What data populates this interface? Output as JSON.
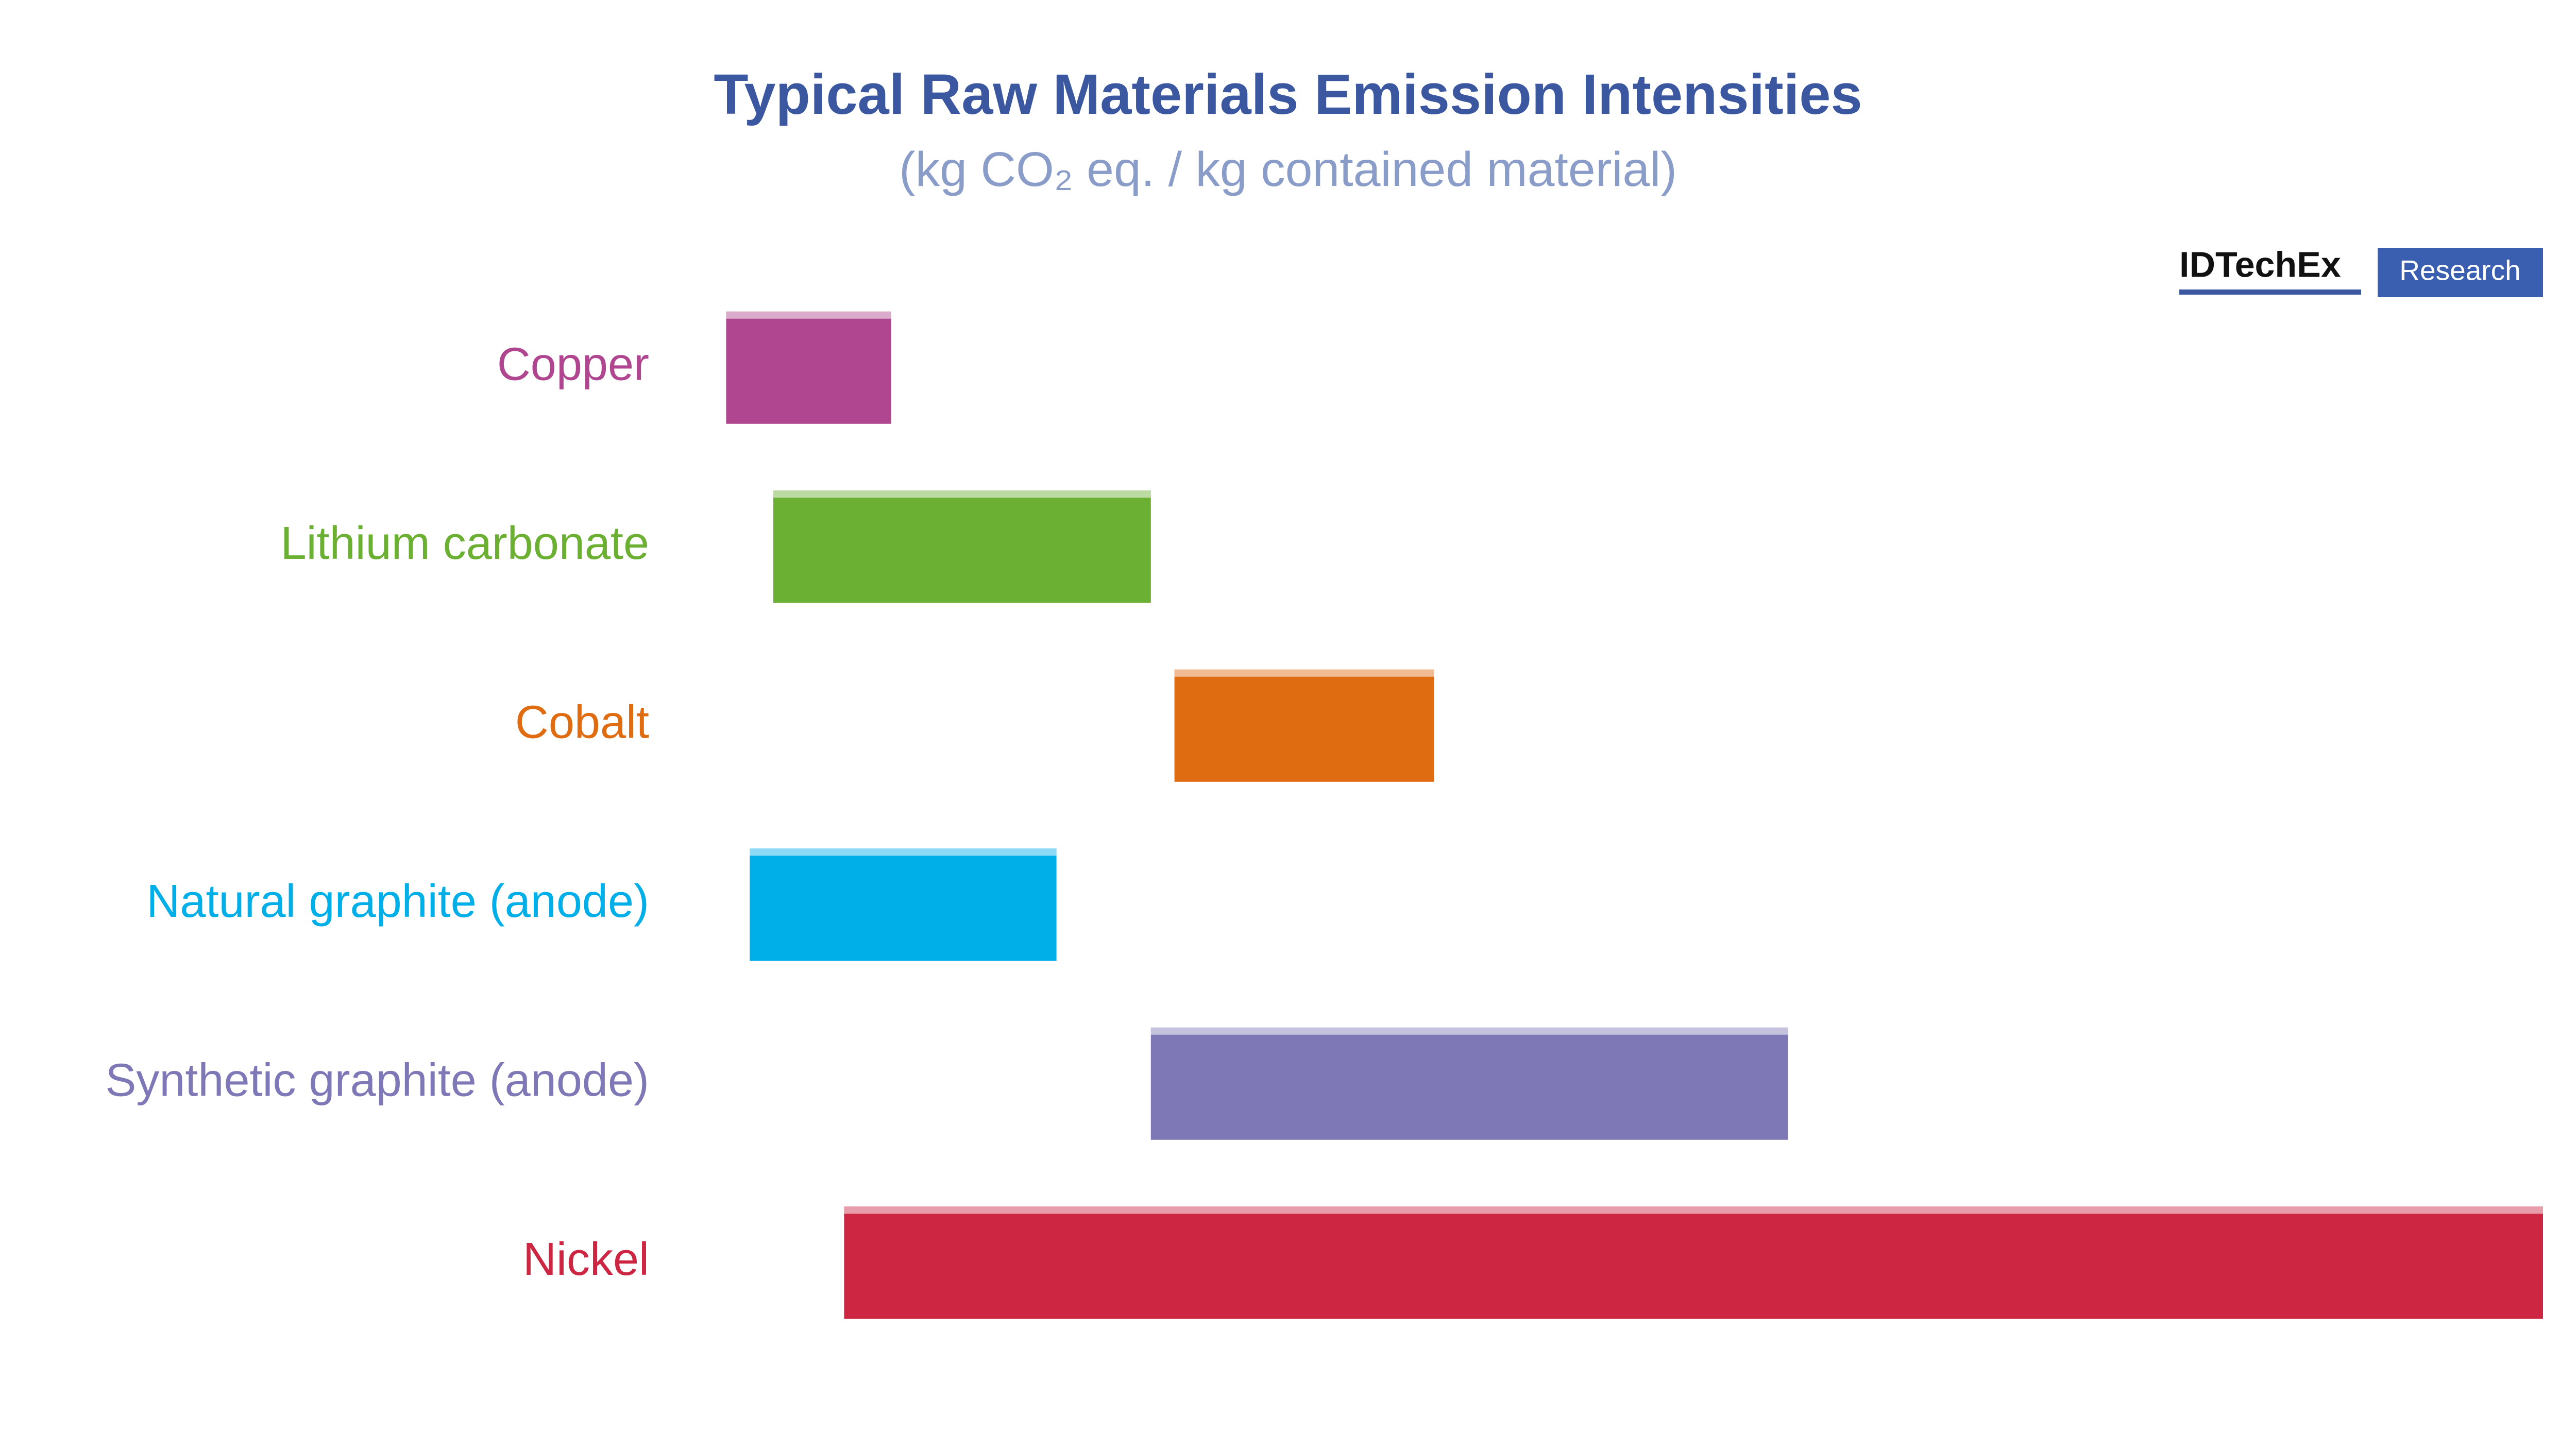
{
  "chart_data": {
    "type": "bar",
    "orientation": "horizontal",
    "title": "Typical Raw Materials Emission Intensities",
    "subtitle": "(kg CO₂ eq. / kg contained material)",
    "categories": [
      "Copper",
      "Lithium carbonate",
      "Cobalt",
      "Natural graphite (anode)",
      "Synthetic graphite (anode)",
      "Nickel"
    ],
    "values": [
      [
        1.5,
        5
      ],
      [
        2.5,
        10.5
      ],
      [
        11,
        16.5
      ],
      [
        2,
        8.5
      ],
      [
        10.5,
        24
      ],
      [
        4,
        40
      ]
    ],
    "colors": [
      "#b0468f",
      "#6cb033",
      "#e06c12",
      "#00aee8",
      "#7f78b6",
      "#cc2643"
    ],
    "xlim": [
      0,
      40
    ],
    "logo": {
      "brand": "IDTechEx",
      "button": "Research"
    }
  }
}
